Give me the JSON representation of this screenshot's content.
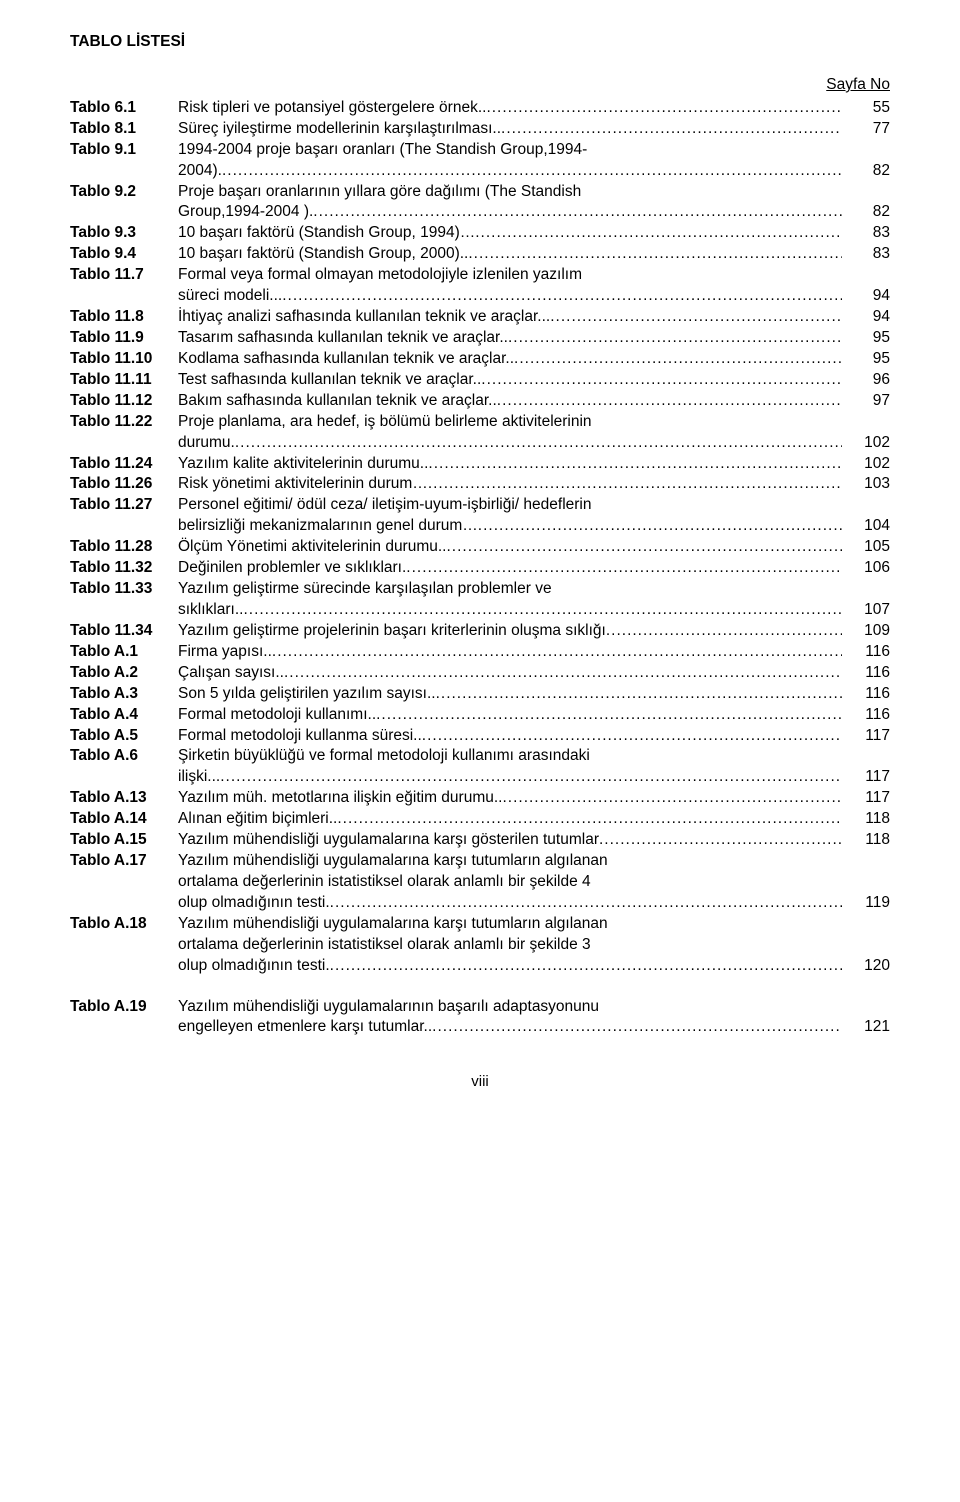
{
  "heading": "TABLO LİSTESİ",
  "page_col_header": "Sayfa No",
  "page_number_footer": "viii",
  "entries": [
    {
      "label": "Tablo 6.1",
      "lines": [
        "Risk tipleri ve potansiyel göstergelere örnek.."
      ],
      "page": "55"
    },
    {
      "label": "Tablo 8.1",
      "lines": [
        "Süreç iyileştirme modellerinin karşılaştırılması.."
      ],
      "page": "77"
    },
    {
      "label": "Tablo 9.1",
      "lines": [
        "1994-2004 proje başarı oranları (The Standish Group,1994-",
        "2004)."
      ],
      "page": "82"
    },
    {
      "label": "Tablo 9.2",
      "lines": [
        "Proje başarı oranlarının yıllara göre dağılımı (The Standish",
        "Group,1994-2004 )."
      ],
      "page": "82"
    },
    {
      "label": "Tablo 9.3",
      "lines": [
        "10 başarı faktörü (Standish Group, 1994)…"
      ],
      "page": "83"
    },
    {
      "label": "Tablo 9.4",
      "lines": [
        "10 başarı faktörü (Standish Group, 2000).."
      ],
      "page": "83"
    },
    {
      "label": "Tablo 11.7",
      "lines": [
        "Formal veya formal olmayan metodolojiyle izlenilen yazılım",
        "süreci modeli..."
      ],
      "page": "94"
    },
    {
      "label": "Tablo 11.8",
      "lines": [
        "İhtiyaç analizi safhasında kullanılan teknik ve araçlar..."
      ],
      "page": "94"
    },
    {
      "label": "Tablo 11.9",
      "lines": [
        "Tasarım safhasında kullanılan teknik ve araçlar.."
      ],
      "page": "95"
    },
    {
      "label": "Tablo 11.10",
      "lines": [
        "Kodlama safhasında kullanılan teknik ve araçlar.."
      ],
      "page": "95"
    },
    {
      "label": "Tablo 11.11",
      "lines": [
        "Test safhasında kullanılan teknik ve araçlar.."
      ],
      "page": "96"
    },
    {
      "label": "Tablo 11.12",
      "lines": [
        "Bakım safhasında kullanılan teknik ve araçlar.."
      ],
      "page": "97"
    },
    {
      "label": "Tablo 11.22",
      "lines": [
        "Proje planlama, ara hedef, iş bölümü belirleme aktivitelerinin",
        "durumu."
      ],
      "page": "102"
    },
    {
      "label": "Tablo 11.24",
      "lines": [
        "Yazılım kalite aktivitelerinin durumu.."
      ],
      "page": "102"
    },
    {
      "label": "Tablo 11.26",
      "lines": [
        "Risk yönetimi aktivitelerinin durum…"
      ],
      "page": "103"
    },
    {
      "label": "Tablo 11.27",
      "lines": [
        "Personel eğitimi/ ödül ceza/ iletişim-uyum-işbirliği/ hedeflerin",
        "belirsizliği mekanizmalarının genel durum…"
      ],
      "page": "104"
    },
    {
      "label": "Tablo 11.28",
      "lines": [
        "Ölçüm Yönetimi aktivitelerinin durumu.."
      ],
      "page": "105"
    },
    {
      "label": "Tablo 11.32",
      "lines": [
        "Değinilen problemler ve sıklıkları."
      ],
      "page": "106"
    },
    {
      "label": "Tablo 11.33",
      "lines": [
        "Yazılım geliştirme sürecinde karşılaşılan problemler ve",
        "sıklıkları.."
      ],
      "page": "107"
    },
    {
      "label": "Tablo 11.34",
      "lines": [
        "Yazılım geliştirme projelerinin başarı kriterlerinin oluşma sıklığı"
      ],
      "page": "109"
    },
    {
      "label": "Tablo A.1",
      "lines": [
        "Firma yapısı.."
      ],
      "page": "116"
    },
    {
      "label": "Tablo A.2",
      "lines": [
        "Çalışan sayısı.."
      ],
      "page": "116"
    },
    {
      "label": "Tablo A.3",
      "lines": [
        "Son 5 yılda geliştirilen yazılım sayısı.."
      ],
      "page": "116"
    },
    {
      "label": "Tablo A.4",
      "lines": [
        "Formal metodoloji kullanımı.."
      ],
      "page": "116"
    },
    {
      "label": "Tablo A.5",
      "lines": [
        "Formal metodoloji kullanma süresi.."
      ],
      "page": "117"
    },
    {
      "label": "Tablo A.6",
      "lines": [
        "Şirketin büyüklüğü ve formal metodoloji kullanımı arasındaki",
        "ilişki..."
      ],
      "page": "117"
    },
    {
      "label": "Tablo A.13",
      "lines": [
        "Yazılım müh. metotlarına ilişkin eğitim durumu.."
      ],
      "page": "117"
    },
    {
      "label": "Tablo A.14",
      "lines": [
        "Alınan eğitim biçimleri.."
      ],
      "page": "118"
    },
    {
      "label": "Tablo A.15",
      "lines": [
        "Yazılım mühendisliği uygulamalarına karşı gösterilen tutumlar"
      ],
      "page": "118"
    },
    {
      "label": "Tablo A.17",
      "lines": [
        "Yazılım mühendisliği uygulamalarına karşı tutumların algılanan",
        "ortalama değerlerinin istatistiksel olarak anlamlı bir şekilde 4",
        "olup olmadığının testi."
      ],
      "page": "119"
    },
    {
      "label": "Tablo A.18",
      "lines": [
        "Yazılım mühendisliği uygulamalarına karşı tutumların algılanan",
        "ortalama değerlerinin istatistiksel olarak anlamlı bir şekilde 3",
        "olup olmadığının testi."
      ],
      "page": "120"
    },
    {
      "label": "__GAP__",
      "lines": [],
      "page": ""
    },
    {
      "label": "Tablo A.19",
      "lines": [
        "Yazılım mühendisliği uygulamalarının başarılı adaptasyonunu",
        "engelleyen etmenlere karşı tutumlar.."
      ],
      "page": "121"
    }
  ]
}
